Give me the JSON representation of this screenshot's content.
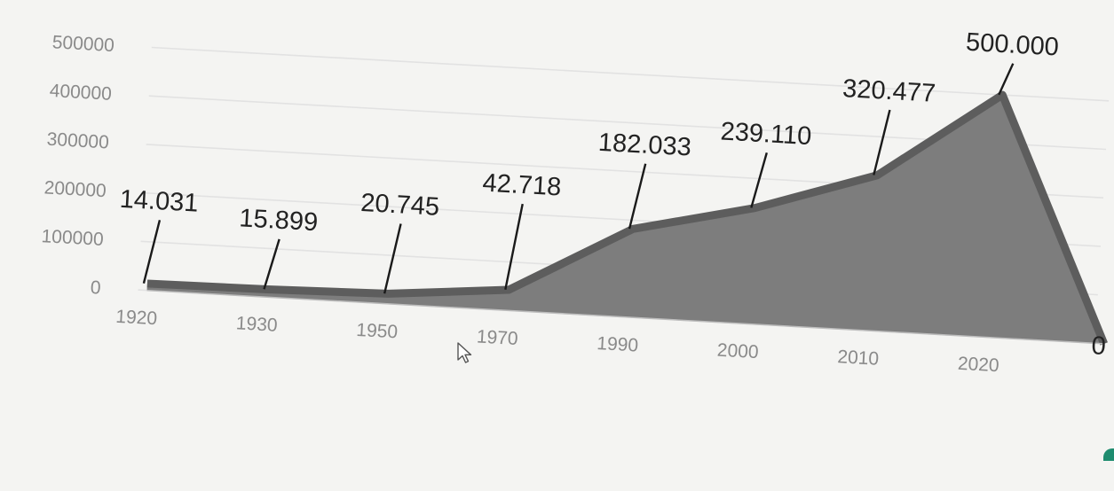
{
  "chart_data": {
    "type": "area",
    "title": "",
    "xlabel": "",
    "ylabel": "",
    "categories": [
      "1920",
      "1930",
      "1950",
      "1970",
      "1990",
      "2000",
      "2010",
      "2020"
    ],
    "values": [
      14031,
      15899,
      20745,
      42718,
      182033,
      239110,
      320477,
      500000
    ],
    "data_labels": [
      "14.031",
      "15.899",
      "20.745",
      "42.718",
      "182.033",
      "239.110",
      "320.477",
      "500.000"
    ],
    "y_ticks": [
      "0",
      "100000",
      "200000",
      "300000",
      "400000",
      "500000"
    ],
    "ylim": [
      0,
      500000
    ],
    "grid": true,
    "legend": "none",
    "edge_label": "0",
    "colors": {
      "area": "#7d7d7d",
      "area_edge": "#5d5d5d",
      "grid": "#e2e2e2",
      "labels": "#222222",
      "ticks": "#8a8a8a"
    }
  }
}
